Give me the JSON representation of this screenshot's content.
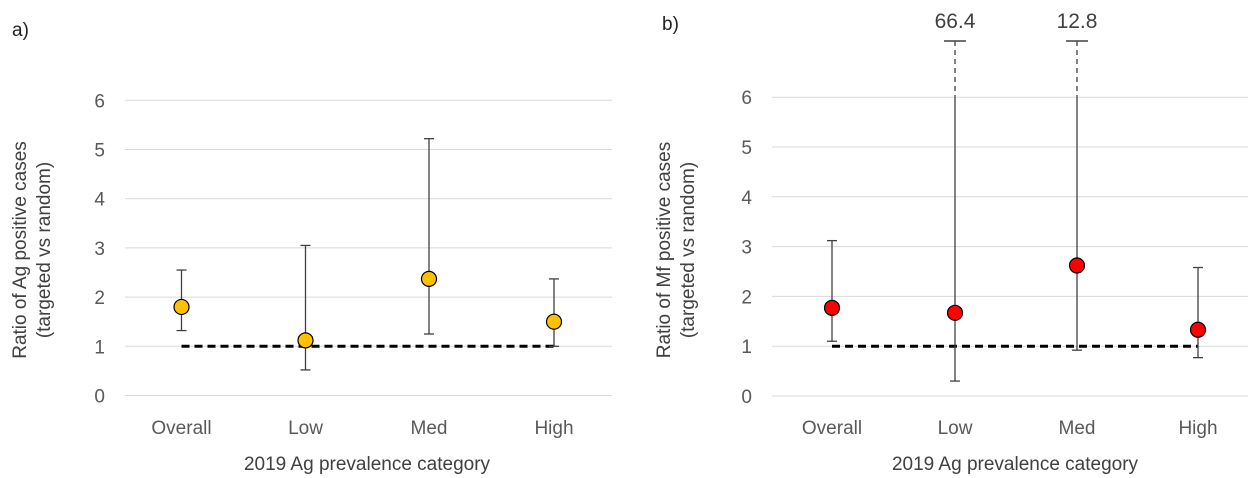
{
  "chart_data": [
    {
      "type": "scatter",
      "panel_label": "a)",
      "title": "",
      "xlabel": "2019 Ag prevalence category",
      "ylabel_lines": [
        "Ratio of Ag positive cases",
        "(targeted vs random)"
      ],
      "categories": [
        "Overall",
        "Low",
        "Med",
        "High"
      ],
      "values": [
        1.8,
        1.12,
        2.37,
        1.5
      ],
      "lower": [
        1.32,
        0.52,
        1.25,
        1.0
      ],
      "upper": [
        2.55,
        3.05,
        5.22,
        2.37
      ],
      "reference_line": 1,
      "ylim": [
        0,
        6
      ],
      "yticks": [
        0,
        1,
        2,
        3,
        4,
        5,
        6
      ],
      "grid": true,
      "marker_color": "#ffc000",
      "upper_labels": [
        "",
        "",
        "",
        ""
      ]
    },
    {
      "type": "scatter",
      "panel_label": "b)",
      "title": "",
      "xlabel": "2019 Ag prevalence category",
      "ylabel_lines": [
        "Ratio of Mf positive cases",
        "(targeted vs random)"
      ],
      "categories": [
        "Overall",
        "Low",
        "Med",
        "High"
      ],
      "values": [
        1.77,
        1.67,
        2.62,
        1.33
      ],
      "lower": [
        1.1,
        0.3,
        0.92,
        0.77
      ],
      "upper": [
        3.12,
        66.4,
        12.8,
        2.58
      ],
      "reference_line": 1,
      "ylim": [
        0,
        6
      ],
      "yticks": [
        0,
        1,
        2,
        3,
        4,
        5,
        6
      ],
      "grid": true,
      "marker_color": "#ff0000",
      "upper_labels": [
        "",
        "66.4",
        "12.8",
        ""
      ]
    }
  ]
}
